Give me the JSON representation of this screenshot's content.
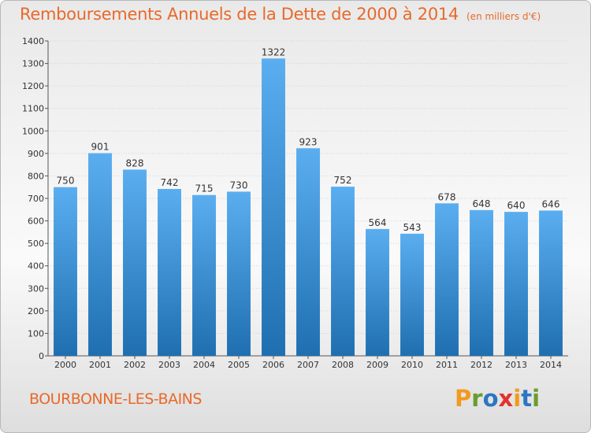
{
  "header": {
    "title": "Remboursements Annuels de la Dette de 2000 à 2014",
    "subtitle": "(en milliers d'€)"
  },
  "footer": {
    "commune": "BOURBONNE-LES-BAINS",
    "logo_text": "Proxiti",
    "logo_colors": [
      "#f29a1f",
      "#6b9c2e",
      "#2d76c2",
      "#e3312d",
      "#f29a1f",
      "#2d76c2",
      "#6b9c2e"
    ]
  },
  "chart_data": {
    "type": "bar",
    "categories": [
      "2000",
      "2001",
      "2002",
      "2003",
      "2004",
      "2005",
      "2006",
      "2007",
      "2008",
      "2009",
      "2010",
      "2011",
      "2012",
      "2013",
      "2014"
    ],
    "values": [
      750,
      901,
      828,
      742,
      715,
      730,
      1322,
      923,
      752,
      564,
      543,
      678,
      648,
      640,
      646
    ],
    "y_ticks": [
      0,
      100,
      200,
      300,
      400,
      500,
      600,
      700,
      800,
      900,
      1000,
      1100,
      1200,
      1300,
      1400
    ],
    "ylim": [
      0,
      1400
    ],
    "grid": true,
    "bar_color_top": "#5aaef0",
    "bar_color_bottom": "#1f6fb0"
  }
}
